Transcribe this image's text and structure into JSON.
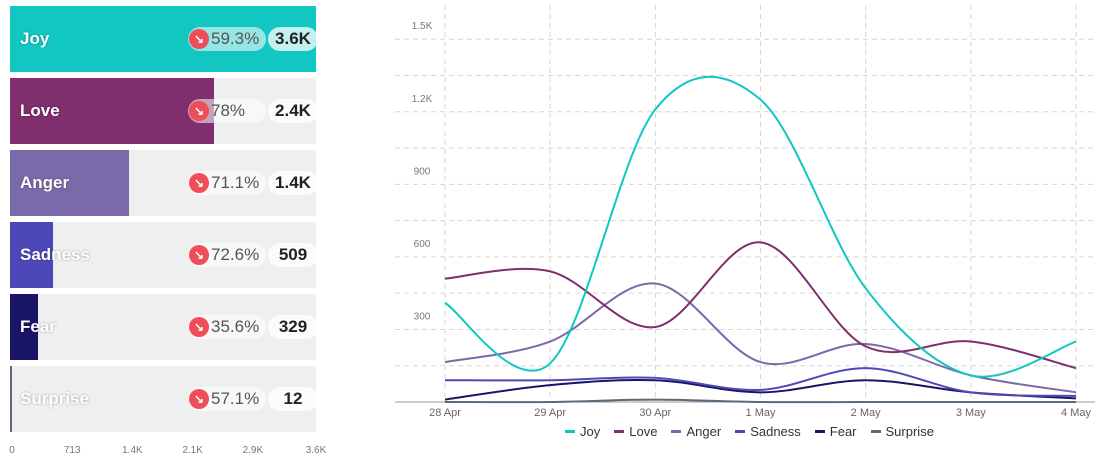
{
  "bar_panel": {
    "rows": [
      {
        "label": "Joy",
        "pct": "59.3%",
        "value_text": "3.6K",
        "value": 3600,
        "color": "#12c6c2"
      },
      {
        "label": "Love",
        "pct": "78%",
        "value_text": "2.4K",
        "value": 2400,
        "color": "#7f2f6d"
      },
      {
        "label": "Anger",
        "pct": "71.1%",
        "value_text": "1.4K",
        "value": 1400,
        "color": "#7a6aa9"
      },
      {
        "label": "Sadness",
        "pct": "72.6%",
        "value_text": "509",
        "value": 509,
        "color": "#4d48b8"
      },
      {
        "label": "Fear",
        "pct": "35.6%",
        "value_text": "329",
        "value": 329,
        "color": "#1a1566"
      },
      {
        "label": "Surprise",
        "pct": "57.1%",
        "value_text": "12",
        "value": 12,
        "color": "#5a6a7a"
      }
    ],
    "axis_ticks": [
      "0",
      "713",
      "1.4K",
      "2.1K",
      "2.9K",
      "3.6K"
    ],
    "axis_values": [
      0,
      713,
      1426,
      2139,
      2852,
      3600
    ],
    "max": 3600,
    "trend_icon": "arrow-down-right-icon",
    "trend_color": "#ef4d57"
  },
  "chart_data": {
    "type": "line",
    "x": [
      "28 Apr",
      "29 Apr",
      "30 Apr",
      "1 May",
      "2 May",
      "3 May",
      "4 May"
    ],
    "ylim": [
      0,
      1600
    ],
    "yticks": [
      {
        "value": 300,
        "label": "300"
      },
      {
        "value": 600,
        "label": "600"
      },
      {
        "value": 900,
        "label": "900"
      },
      {
        "value": 1200,
        "label": "1.2K"
      },
      {
        "value": 1500,
        "label": "1.5K"
      }
    ],
    "grid": true,
    "legend_position": "bottom",
    "series": [
      {
        "name": "Joy",
        "color": "#12c6c2",
        "values": [
          410,
          160,
          1210,
          1250,
          470,
          110,
          250
        ]
      },
      {
        "name": "Love",
        "color": "#7f2f6d",
        "values": [
          510,
          540,
          310,
          660,
          230,
          250,
          140
        ]
      },
      {
        "name": "Anger",
        "color": "#7a6aa9",
        "values": [
          165,
          250,
          490,
          165,
          240,
          110,
          40
        ]
      },
      {
        "name": "Sadness",
        "color": "#4d48b8",
        "values": [
          90,
          90,
          100,
          50,
          140,
          40,
          25
        ]
      },
      {
        "name": "Fear",
        "color": "#1a1566",
        "values": [
          10,
          70,
          90,
          40,
          90,
          40,
          15
        ]
      },
      {
        "name": "Surprise",
        "color": "#5a6a7a",
        "values": [
          0,
          0,
          10,
          0,
          0,
          0,
          0
        ]
      }
    ]
  }
}
